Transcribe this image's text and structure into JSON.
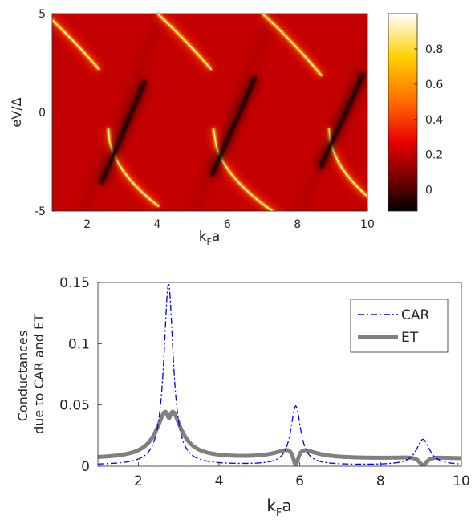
{
  "chart_data": [
    {
      "type": "heatmap",
      "xlabel_main": "k",
      "xlabel_sub": "F",
      "xlabel_tail": "a",
      "ylabel": "eV/Δ",
      "xlim": [
        1,
        10
      ],
      "ylim": [
        -5,
        5
      ],
      "xticks": [
        "2",
        "4",
        "6",
        "8",
        "10"
      ],
      "yticks": [
        "5",
        "0",
        "-5"
      ],
      "colorbar": {
        "range": [
          -0.12,
          1.0
        ],
        "ticks": [
          "0.8",
          "0.6",
          "0.4",
          "0.2",
          "0"
        ],
        "colormap": "hot"
      },
      "features": {
        "resonances_kF": [
          2.75,
          5.9,
          9.0
        ],
        "bright_line_slope_eV_per_kFa": -3.6
      },
      "colors": {
        "background": "#c00000",
        "bright": "#ffffd0",
        "dark": "#000000"
      }
    },
    {
      "type": "line",
      "xlabel_main": "k",
      "xlabel_sub": "F",
      "xlabel_tail": "a",
      "ylabel_line1": "Conductances",
      "ylabel_line2": "due to CAR and ET",
      "xlim": [
        1,
        10
      ],
      "ylim": [
        0,
        0.15
      ],
      "xticks": [
        "2",
        "4",
        "6",
        "8",
        "10"
      ],
      "yticks": [
        "0",
        "0.05",
        "0.1",
        "0.15"
      ],
      "legend": {
        "position": "top-right"
      },
      "series": [
        {
          "name": "CAR",
          "style": "dash-dot",
          "color": "#0000ff",
          "peaks": [
            {
              "x": 2.75,
              "height": 0.148,
              "width": 0.14
            },
            {
              "x": 5.9,
              "height": 0.048,
              "width": 0.15
            },
            {
              "x": 9.05,
              "height": 0.021,
              "width": 0.2
            }
          ]
        },
        {
          "name": "ET",
          "style": "solid-thick",
          "color": "#808080",
          "baseline": 0.006,
          "peaks": [
            {
              "x": 2.62,
              "height": 0.05
            },
            {
              "x": 2.9,
              "height": 0.052
            },
            {
              "x": 5.6,
              "height": 0.009
            },
            {
              "x": 6.2,
              "height": 0.009
            },
            {
              "x": 8.7,
              "height": 0.001
            },
            {
              "x": 9.45,
              "height": 0.001
            }
          ],
          "dips": [
            {
              "x": 2.75,
              "value": 0.039
            },
            {
              "x": 5.9,
              "value": 0.0
            },
            {
              "x": 9.05,
              "value": 0.0
            }
          ]
        }
      ]
    }
  ]
}
